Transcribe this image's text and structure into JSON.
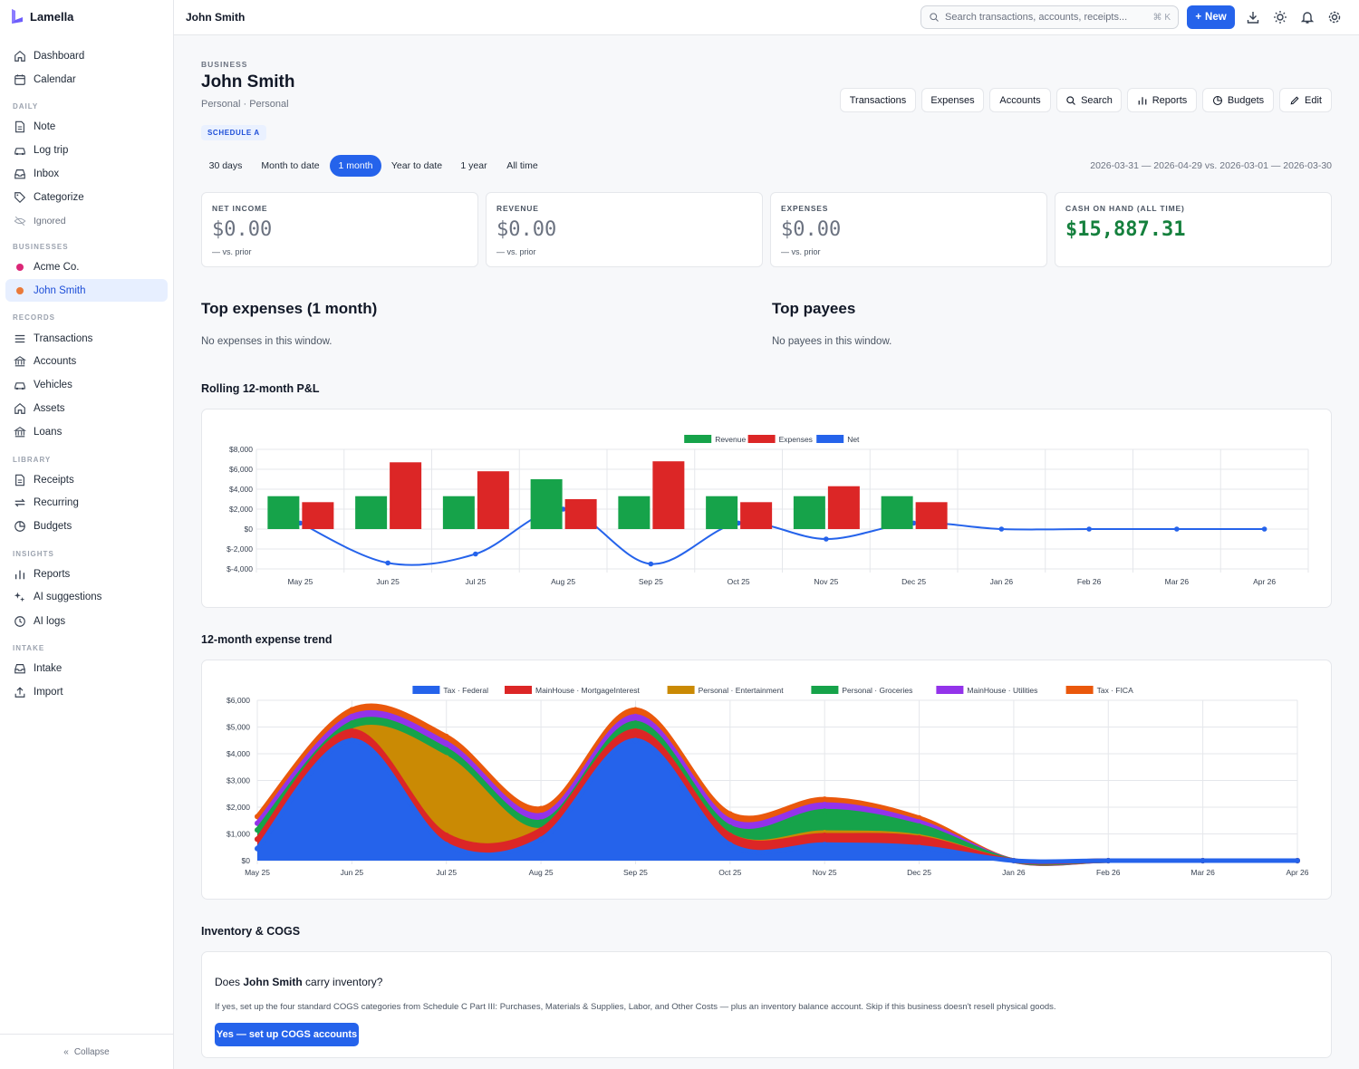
{
  "app": {
    "name": "Lamella"
  },
  "sidebar": {
    "sections": {
      "daily": "DAILY",
      "businesses": "BUSINESSES",
      "records": "RECORDS",
      "library": "LIBRARY",
      "insights": "INSIGHTS",
      "intake": "INTAKE"
    },
    "items": {
      "dashboard": "Dashboard",
      "calendar": "Calendar",
      "note": "Note",
      "log_trip": "Log trip",
      "inbox": "Inbox",
      "categorize": "Categorize",
      "ignored": "Ignored",
      "acme": "Acme Co.",
      "john": "John Smith",
      "transactions": "Transactions",
      "accounts": "Accounts",
      "vehicles": "Vehicles",
      "assets": "Assets",
      "loans": "Loans",
      "receipts": "Receipts",
      "recurring": "Recurring",
      "budgets": "Budgets",
      "reports": "Reports",
      "ai_suggestions": "AI suggestions",
      "ai_logs": "AI logs",
      "intake": "Intake",
      "import": "Import"
    },
    "business_colors": {
      "acme": "#db2777",
      "john": "#ea7a3a"
    },
    "collapse": "Collapse"
  },
  "topbar": {
    "title": "John Smith",
    "search_placeholder": "Search transactions, accounts, receipts...",
    "shortcut": "⌘ K",
    "new_label": "New"
  },
  "header": {
    "kicker": "BUSINESS",
    "title": "John Smith",
    "subtitle": "Personal · Personal",
    "badge": "SCHEDULE A",
    "actions": [
      "Transactions",
      "Expenses",
      "Accounts",
      "Search",
      "Reports",
      "Budgets",
      "Edit"
    ]
  },
  "ranges": {
    "options": [
      "30 days",
      "Month to date",
      "1 month",
      "Year to date",
      "1 year",
      "All time"
    ],
    "selected": "1 month",
    "date_span": "2026-03-31 — 2026-04-29 vs. 2026-03-01 — 2026-03-30"
  },
  "stats": [
    {
      "label": "NET INCOME",
      "value": "$0.00",
      "compare": "— vs. prior"
    },
    {
      "label": "REVENUE",
      "value": "$0.00",
      "compare": "— vs. prior"
    },
    {
      "label": "EXPENSES",
      "value": "$0.00",
      "compare": "— vs. prior"
    },
    {
      "label": "CASH ON HAND (ALL TIME)",
      "value": "$15,887.31",
      "compare": ""
    }
  ],
  "top_expenses": {
    "title": "Top expenses (1 month)",
    "empty": "No expenses in this window."
  },
  "top_payees": {
    "title": "Top payees",
    "empty": "No payees in this window."
  },
  "pnl_title": "Rolling 12-month P&L",
  "trend_title": "12-month expense trend",
  "inventory": {
    "title": "Inventory & COGS",
    "question_prefix": "Does",
    "question_name": "John Smith",
    "question_suffix": "carry inventory?",
    "note": "If yes, set up the four standard COGS categories from Schedule C Part III: Purchases, Materials & Supplies, Labor, and Other Costs — plus an inventory balance account. Skip if this business doesn't resell physical goods.",
    "button": "Yes — set up COGS accounts"
  },
  "chart_data": [
    {
      "type": "bar",
      "categories": [
        "May 25",
        "Jun 25",
        "Jul 25",
        "Aug 25",
        "Sep 25",
        "Oct 25",
        "Nov 25",
        "Dec 25",
        "Jan 26",
        "Feb 26",
        "Mar 26",
        "Apr 26"
      ],
      "series": [
        {
          "name": "Revenue",
          "color": "#16a34a",
          "values": [
            3300,
            3300,
            3300,
            5000,
            3300,
            3300,
            3300,
            3300,
            0,
            0,
            0,
            0
          ]
        },
        {
          "name": "Expenses",
          "color": "#dc2626",
          "values": [
            2700,
            6700,
            5800,
            3000,
            6800,
            2700,
            4300,
            2700,
            0,
            0,
            0,
            0
          ]
        },
        {
          "name": "Net",
          "color": "#2563eb",
          "type": "line",
          "values": [
            600,
            -3400,
            -2500,
            2000,
            -3500,
            600,
            -1000,
            600,
            0,
            0,
            0,
            0
          ]
        }
      ],
      "ylim": [
        -4000,
        8000
      ],
      "yticks": [
        "$8,000",
        "$6,000",
        "$4,000",
        "$2,000",
        "$0",
        "$-2,000",
        "$-4,000"
      ],
      "grid": true,
      "legend": "top-center"
    },
    {
      "type": "area",
      "stacked": true,
      "categories": [
        "May 25",
        "Jun 25",
        "Jul 25",
        "Aug 25",
        "Sep 25",
        "Oct 25",
        "Nov 25",
        "Dec 25",
        "Jan 26",
        "Feb 26",
        "Mar 26",
        "Apr 26"
      ],
      "series": [
        {
          "name": "Tax · Federal",
          "color": "#2563eb",
          "values": [
            450,
            4500,
            600,
            800,
            4500,
            600,
            600,
            500,
            0,
            0,
            0,
            0
          ]
        },
        {
          "name": "MainHouse · MortgageInterest",
          "color": "#dc2626",
          "values": [
            350,
            350,
            350,
            350,
            350,
            350,
            350,
            350,
            0,
            0,
            0,
            0
          ]
        },
        {
          "name": "Personal · Entertainment",
          "color": "#ca8a04",
          "values": [
            0,
            0,
            2900,
            0,
            0,
            0,
            100,
            50,
            0,
            0,
            0,
            0
          ]
        },
        {
          "name": "Personal · Groceries",
          "color": "#16a34a",
          "values": [
            350,
            300,
            300,
            300,
            300,
            300,
            800,
            400,
            0,
            0,
            0,
            0
          ]
        },
        {
          "name": "MainHouse · Utilities",
          "color": "#9333ea",
          "values": [
            250,
            250,
            250,
            250,
            250,
            250,
            250,
            150,
            0,
            0,
            0,
            0
          ]
        },
        {
          "name": "Tax · FICA",
          "color": "#ea580c",
          "values": [
            250,
            250,
            250,
            250,
            250,
            250,
            200,
            150,
            0,
            0,
            0,
            0
          ]
        }
      ],
      "ylim": [
        0,
        6000
      ],
      "yticks": [
        "$6,000",
        "$5,000",
        "$4,000",
        "$3,000",
        "$2,000",
        "$1,000",
        "$0"
      ],
      "grid": true,
      "legend": "top-center"
    }
  ]
}
